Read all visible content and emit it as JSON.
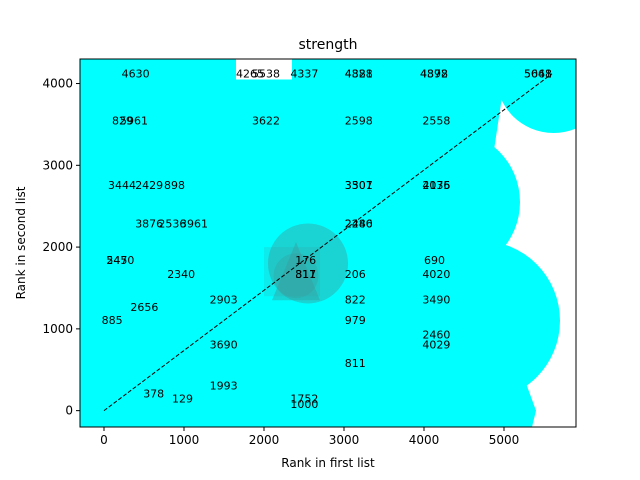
{
  "chart_data": {
    "type": "scatter",
    "title": "strength",
    "xlabel": "Rank in first list",
    "ylabel": "Rank in second list",
    "xlim": [
      -300,
      5900
    ],
    "ylim": [
      -200,
      4300
    ],
    "xticks": [
      0,
      1000,
      2000,
      3000,
      4000,
      5000
    ],
    "yticks": [
      0,
      1000,
      2000,
      3000,
      4000
    ],
    "grid": false,
    "marker_color": "#00ffff",
    "overlay_color": "#3a9e9e",
    "diagonal": {
      "x": [
        0,
        5600
      ],
      "y": [
        0,
        4120
      ],
      "style": "dashed"
    },
    "labels": [
      {
        "text": "4630",
        "x": 220,
        "y": 4120
      },
      {
        "text": "4265",
        "x": 1650,
        "y": 4120
      },
      {
        "text": "5538",
        "x": 1850,
        "y": 4120
      },
      {
        "text": "4337",
        "x": 2330,
        "y": 4120
      },
      {
        "text": "4821",
        "x": 3010,
        "y": 4120
      },
      {
        "text": "4388",
        "x": 3010,
        "y": 4120
      },
      {
        "text": "4898",
        "x": 3950,
        "y": 4120
      },
      {
        "text": "4372",
        "x": 3950,
        "y": 4120
      },
      {
        "text": "5648",
        "x": 5250,
        "y": 4120
      },
      {
        "text": "5061",
        "x": 5250,
        "y": 4120
      },
      {
        "text": "829",
        "x": 100,
        "y": 3550
      },
      {
        "text": "5961",
        "x": 200,
        "y": 3550
      },
      {
        "text": "3622",
        "x": 1850,
        "y": 3550
      },
      {
        "text": "2598",
        "x": 3010,
        "y": 3550
      },
      {
        "text": "2558",
        "x": 3980,
        "y": 3550
      },
      {
        "text": "3444",
        "x": 50,
        "y": 2760
      },
      {
        "text": "2429",
        "x": 390,
        "y": 2760
      },
      {
        "text": "898",
        "x": 750,
        "y": 2760
      },
      {
        "text": "3501",
        "x": 3010,
        "y": 2760
      },
      {
        "text": "3307",
        "x": 3010,
        "y": 2760
      },
      {
        "text": "2076",
        "x": 3980,
        "y": 2760
      },
      {
        "text": "4135",
        "x": 3980,
        "y": 2760
      },
      {
        "text": "3876",
        "x": 390,
        "y": 2290
      },
      {
        "text": "2536",
        "x": 680,
        "y": 2290
      },
      {
        "text": "3961",
        "x": 950,
        "y": 2290
      },
      {
        "text": "2280",
        "x": 3010,
        "y": 2290
      },
      {
        "text": "2446",
        "x": 3010,
        "y": 2290
      },
      {
        "text": "2470",
        "x": 30,
        "y": 1840
      },
      {
        "text": "545",
        "x": 30,
        "y": 1840
      },
      {
        "text": "176",
        "x": 2390,
        "y": 1840
      },
      {
        "text": "690",
        "x": 4000,
        "y": 1840
      },
      {
        "text": "2340",
        "x": 790,
        "y": 1670
      },
      {
        "text": "817",
        "x": 2390,
        "y": 1670
      },
      {
        "text": "311",
        "x": 2390,
        "y": 1670
      },
      {
        "text": "206",
        "x": 3010,
        "y": 1670
      },
      {
        "text": "4020",
        "x": 3980,
        "y": 1670
      },
      {
        "text": "2656",
        "x": 330,
        "y": 1270
      },
      {
        "text": "2903",
        "x": 1320,
        "y": 1360
      },
      {
        "text": "822",
        "x": 3010,
        "y": 1360
      },
      {
        "text": "3490",
        "x": 3980,
        "y": 1360
      },
      {
        "text": "885",
        "x": -30,
        "y": 1110
      },
      {
        "text": "979",
        "x": 3010,
        "y": 1110
      },
      {
        "text": "2460",
        "x": 3980,
        "y": 930
      },
      {
        "text": "3690",
        "x": 1320,
        "y": 810
      },
      {
        "text": "4029",
        "x": 3980,
        "y": 810
      },
      {
        "text": "811",
        "x": 3010,
        "y": 580
      },
      {
        "text": "1993",
        "x": 1320,
        "y": 310
      },
      {
        "text": "378",
        "x": 490,
        "y": 210
      },
      {
        "text": "129",
        "x": 850,
        "y": 150
      },
      {
        "text": "1752",
        "x": 2330,
        "y": 150
      },
      {
        "text": "1000",
        "x": 2330,
        "y": 80
      }
    ]
  }
}
